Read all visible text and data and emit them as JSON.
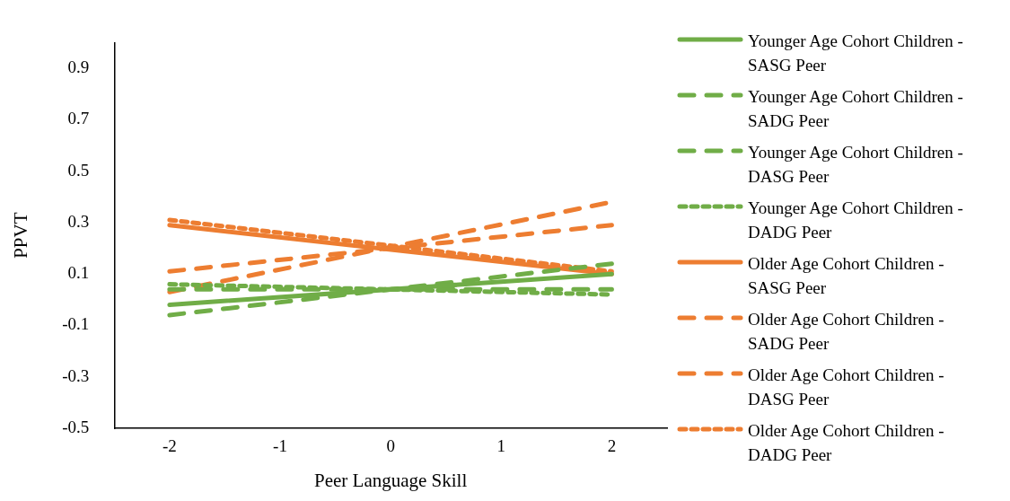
{
  "chart_data": {
    "type": "line",
    "xlabel": "Peer Language Skill",
    "ylabel": "PPVT",
    "categories": [
      "-2",
      "-1",
      "0",
      "1",
      "2"
    ],
    "ylim": [
      -0.5,
      1.0
    ],
    "yticks": [
      -0.5,
      -0.3,
      -0.1,
      0.1,
      0.3,
      0.5,
      0.7,
      0.9
    ],
    "grid": false,
    "legend": "right",
    "marker": "none",
    "series": [
      {
        "name": "Younger Age Cohort Children - SASG Peer",
        "color": "#70ad47",
        "line_style": "solid",
        "values": [
          -0.02,
          null,
          null,
          null,
          0.1
        ]
      },
      {
        "name": "Younger Age Cohort Children - SADG Peer",
        "color": "#70ad47",
        "line_style": "dashed",
        "values": [
          -0.06,
          null,
          null,
          null,
          0.14
        ]
      },
      {
        "name": "Younger Age Cohort Children - DASG Peer",
        "color": "#70ad47",
        "line_style": "dashed",
        "values": [
          0.04,
          null,
          null,
          null,
          0.04
        ]
      },
      {
        "name": "Younger Age Cohort Children - DADG Peer",
        "color": "#70ad47",
        "line_style": "dotted",
        "values": [
          0.06,
          null,
          null,
          null,
          0.02
        ]
      },
      {
        "name": "Older Age Cohort Children - SASG Peer",
        "color": "#ed7d31",
        "line_style": "solid",
        "values": [
          0.29,
          null,
          null,
          null,
          0.1
        ]
      },
      {
        "name": "Older Age Cohort Children - SADG Peer",
        "color": "#ed7d31",
        "line_style": "dashed",
        "values": [
          0.11,
          null,
          null,
          null,
          0.29
        ]
      },
      {
        "name": "Older Age Cohort Children - DASG Peer",
        "color": "#ed7d31",
        "line_style": "dashed",
        "values": [
          0.03,
          null,
          null,
          null,
          0.38
        ]
      },
      {
        "name": "Older Age Cohort Children - DADG Peer",
        "color": "#ed7d31",
        "line_style": "dotted",
        "values": [
          0.31,
          null,
          null,
          null,
          0.11
        ]
      }
    ]
  }
}
